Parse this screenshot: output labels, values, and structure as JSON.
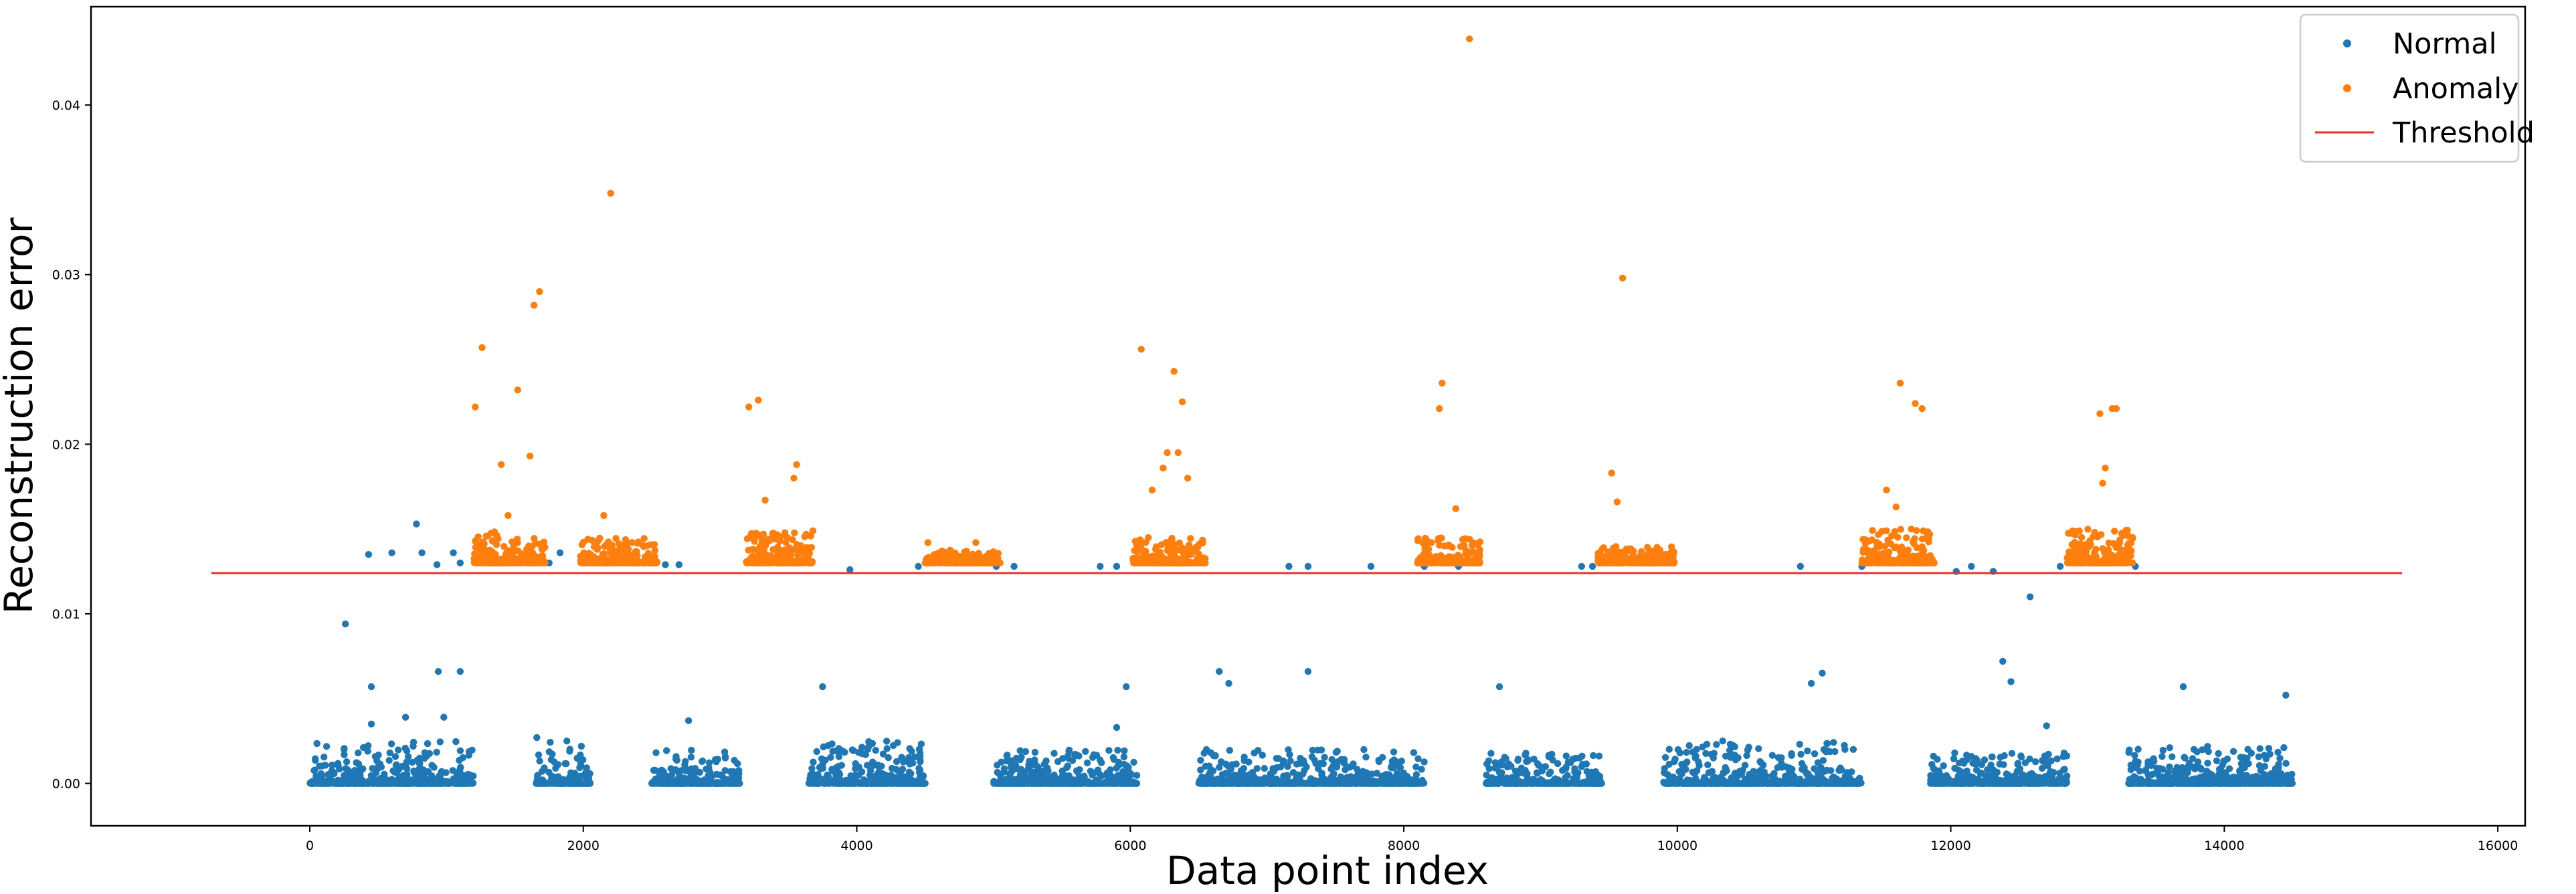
{
  "chart_data": {
    "type": "scatter",
    "title": "",
    "xlabel": "Data point index",
    "ylabel": "Reconstruction error",
    "xlim": [
      -1600,
      16200
    ],
    "ylim": [
      -0.0025,
      0.0458
    ],
    "x_ticks": [
      0,
      2000,
      4000,
      6000,
      8000,
      10000,
      12000,
      14000,
      16000
    ],
    "x_tick_labels": [
      "0",
      "2000",
      "4000",
      "6000",
      "8000",
      "10000",
      "12000",
      "14000",
      "16000"
    ],
    "y_ticks": [
      0.0,
      0.01,
      0.02,
      0.03,
      0.04
    ],
    "y_tick_labels": [
      "0.00",
      "0.01",
      "0.02",
      "0.03",
      "0.04"
    ],
    "grid": false,
    "legend_position": "top-right",
    "series": [
      {
        "name": "Normal",
        "kind": "points",
        "color": "#1f77b4",
        "clusters": [
          {
            "x_range": [
              0,
              1200
            ],
            "y_low": 0.0,
            "y_high": 0.0025
          },
          {
            "x_range": [
              1650,
              2050
            ],
            "y_low": 0.0,
            "y_high": 0.0025
          },
          {
            "x_range": [
              2500,
              3150
            ],
            "y_low": 0.0,
            "y_high": 0.002
          },
          {
            "x_range": [
              3650,
              4500
            ],
            "y_low": 0.0,
            "y_high": 0.0025
          },
          {
            "x_range": [
              5000,
              6050
            ],
            "y_low": 0.0,
            "y_high": 0.002
          },
          {
            "x_range": [
              6500,
              8150
            ],
            "y_low": 0.0,
            "y_high": 0.002
          },
          {
            "x_range": [
              8600,
              9450
            ],
            "y_low": 0.0,
            "y_high": 0.0018
          },
          {
            "x_range": [
              9900,
              11350
            ],
            "y_low": 0.0,
            "y_high": 0.0025
          },
          {
            "x_range": [
              11850,
              12850
            ],
            "y_low": 0.0,
            "y_high": 0.0018
          },
          {
            "x_range": [
              13300,
              14500
            ],
            "y_low": 0.0,
            "y_high": 0.0022
          }
        ],
        "points": [
          [
            260,
            0.0094
          ],
          [
            450,
            0.0057
          ],
          [
            700,
            0.0039
          ],
          [
            940,
            0.0066
          ],
          [
            1100,
            0.0066
          ],
          [
            980,
            0.0039
          ],
          [
            450,
            0.0035
          ],
          [
            3750,
            0.0057
          ],
          [
            5970,
            0.0057
          ],
          [
            5900,
            0.0033
          ],
          [
            6650,
            0.0066
          ],
          [
            6720,
            0.0059
          ],
          [
            7300,
            0.0066
          ],
          [
            8700,
            0.0057
          ],
          [
            10980,
            0.0059
          ],
          [
            11060,
            0.0065
          ],
          [
            12380,
            0.0072
          ],
          [
            12440,
            0.006
          ],
          [
            12580,
            0.011
          ],
          [
            12700,
            0.0034
          ],
          [
            13700,
            0.0057
          ],
          [
            14450,
            0.0052
          ],
          [
            1660,
            0.0027
          ],
          [
            1880,
            0.0025
          ],
          [
            2770,
            0.0037
          ],
          [
            430,
            0.0135
          ],
          [
            600,
            0.0136
          ],
          [
            780,
            0.0153
          ],
          [
            820,
            0.0136
          ],
          [
            930,
            0.0129
          ],
          [
            1050,
            0.0136
          ],
          [
            1100,
            0.013
          ],
          [
            1830,
            0.0136
          ],
          [
            1750,
            0.013
          ],
          [
            2600,
            0.0129
          ],
          [
            2700,
            0.0129
          ],
          [
            3950,
            0.0126
          ],
          [
            4450,
            0.0128
          ],
          [
            5020,
            0.0128
          ],
          [
            5150,
            0.0128
          ],
          [
            5780,
            0.0128
          ],
          [
            5900,
            0.0128
          ],
          [
            7160,
            0.0128
          ],
          [
            7300,
            0.0128
          ],
          [
            7760,
            0.0128
          ],
          [
            8150,
            0.0128
          ],
          [
            8400,
            0.0128
          ],
          [
            9300,
            0.0128
          ],
          [
            9380,
            0.0128
          ],
          [
            10900,
            0.0128
          ],
          [
            11350,
            0.0128
          ],
          [
            12040,
            0.0125
          ],
          [
            12150,
            0.0128
          ],
          [
            12310,
            0.0125
          ],
          [
            12800,
            0.0128
          ],
          [
            13350,
            0.0128
          ]
        ]
      },
      {
        "name": "Anomaly",
        "kind": "points",
        "color": "#ff7f0e",
        "clusters": [
          {
            "x_range": [
              1200,
              1720
            ],
            "y_low": 0.013,
            "y_high": 0.015
          },
          {
            "x_range": [
              1980,
              2540
            ],
            "y_low": 0.013,
            "y_high": 0.0145
          },
          {
            "x_range": [
              3190,
              3680
            ],
            "y_low": 0.013,
            "y_high": 0.015
          },
          {
            "x_range": [
              4500,
              5050
            ],
            "y_low": 0.013,
            "y_high": 0.0138
          },
          {
            "x_range": [
              6020,
              6550
            ],
            "y_low": 0.013,
            "y_high": 0.0145
          },
          {
            "x_range": [
              8100,
              8560
            ],
            "y_low": 0.013,
            "y_high": 0.0145
          },
          {
            "x_range": [
              9420,
              9980
            ],
            "y_low": 0.013,
            "y_high": 0.014
          },
          {
            "x_range": [
              11350,
              11880
            ],
            "y_low": 0.013,
            "y_high": 0.015
          },
          {
            "x_range": [
              12850,
              13330
            ],
            "y_low": 0.013,
            "y_high": 0.015
          }
        ],
        "points": [
          [
            1210,
            0.0222
          ],
          [
            1260,
            0.0257
          ],
          [
            1400,
            0.0188
          ],
          [
            1520,
            0.0232
          ],
          [
            1610,
            0.0193
          ],
          [
            1640,
            0.0282
          ],
          [
            1680,
            0.029
          ],
          [
            1450,
            0.0158
          ],
          [
            2200,
            0.0348
          ],
          [
            2150,
            0.0158
          ],
          [
            3210,
            0.0222
          ],
          [
            3280,
            0.0226
          ],
          [
            3330,
            0.0167
          ],
          [
            3560,
            0.0188
          ],
          [
            3540,
            0.018
          ],
          [
            4520,
            0.0142
          ],
          [
            4870,
            0.0142
          ],
          [
            6080,
            0.0256
          ],
          [
            6160,
            0.0173
          ],
          [
            6320,
            0.0243
          ],
          [
            6380,
            0.0225
          ],
          [
            6270,
            0.0195
          ],
          [
            6350,
            0.0195
          ],
          [
            6420,
            0.018
          ],
          [
            6240,
            0.0186
          ],
          [
            8260,
            0.0221
          ],
          [
            8280,
            0.0236
          ],
          [
            8480,
            0.0439
          ],
          [
            8380,
            0.0162
          ],
          [
            9520,
            0.0183
          ],
          [
            9560,
            0.0166
          ],
          [
            9600,
            0.0298
          ],
          [
            11530,
            0.0173
          ],
          [
            11630,
            0.0236
          ],
          [
            11740,
            0.0224
          ],
          [
            11790,
            0.0221
          ],
          [
            11600,
            0.0163
          ],
          [
            13090,
            0.0218
          ],
          [
            13180,
            0.0221
          ],
          [
            13210,
            0.0221
          ],
          [
            13130,
            0.0186
          ],
          [
            13110,
            0.0177
          ]
        ]
      },
      {
        "name": "Threshold",
        "kind": "line",
        "color": "#e8302a",
        "x": [
          -720,
          15300
        ],
        "y": [
          0.0124,
          0.0124
        ]
      }
    ]
  }
}
